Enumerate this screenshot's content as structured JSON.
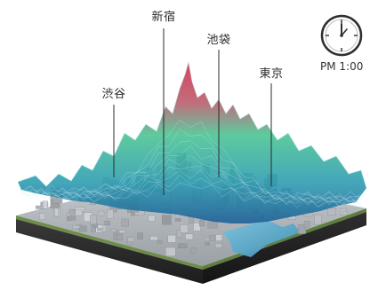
{
  "labels": {
    "shibuya": "渋谷",
    "shinjuku": "新宿",
    "ikebukuro": "池袋",
    "tokyo": "東京"
  },
  "clock": {
    "time_text": "PM 1:00"
  },
  "colors": {
    "peak_red": "#c8304a",
    "mid_green": "#3fbf8e",
    "low_blue": "#1d6fa5",
    "terrain_dark": "#2a2a2a",
    "city_gray": "#9ea3a8",
    "water": "#5ea8c9"
  },
  "icons": [
    "clock-icon"
  ]
}
